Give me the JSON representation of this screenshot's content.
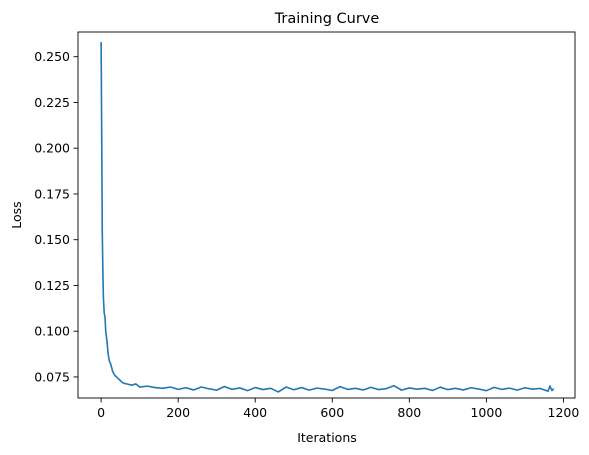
{
  "chart_data": {
    "type": "line",
    "title": "Training Curve",
    "xlabel": "Iterations",
    "ylabel": "Loss",
    "xlim": [
      -60,
      1230
    ],
    "ylim": [
      0.0635,
      0.2635
    ],
    "xticks": [
      0,
      200,
      400,
      600,
      800,
      1000,
      1200
    ],
    "xtick_labels": [
      "0",
      "200",
      "400",
      "600",
      "800",
      "1000",
      "1200"
    ],
    "yticks": [
      0.075,
      0.1,
      0.125,
      0.15,
      0.175,
      0.2,
      0.225,
      0.25
    ],
    "ytick_labels": [
      "0.075",
      "0.100",
      "0.125",
      "0.150",
      "0.175",
      "0.200",
      "0.225",
      "0.250"
    ],
    "grid": false,
    "legend": "none",
    "series": [
      {
        "color": "#1f77b4",
        "x": [
          0,
          1,
          2,
          3,
          4,
          5,
          6,
          8,
          10,
          12,
          15,
          18,
          21,
          25,
          30,
          35,
          40,
          45,
          50,
          55,
          60,
          70,
          80,
          90,
          100,
          120,
          140,
          160,
          180,
          200,
          220,
          240,
          260,
          280,
          300,
          320,
          340,
          360,
          380,
          400,
          420,
          440,
          460,
          480,
          500,
          520,
          540,
          560,
          580,
          600,
          620,
          640,
          660,
          680,
          700,
          720,
          740,
          760,
          780,
          800,
          820,
          840,
          860,
          880,
          900,
          920,
          940,
          960,
          980,
          1000,
          1020,
          1040,
          1060,
          1080,
          1100,
          1120,
          1140,
          1160,
          1165,
          1170,
          1175
        ],
        "y": [
          0.258,
          0.225,
          0.19,
          0.155,
          0.14,
          0.128,
          0.118,
          0.11,
          0.108,
          0.1,
          0.095,
          0.088,
          0.084,
          0.082,
          0.078,
          0.076,
          0.075,
          0.074,
          0.073,
          0.072,
          0.0715,
          0.071,
          0.0705,
          0.0712,
          0.0695,
          0.07,
          0.0692,
          0.0688,
          0.0695,
          0.0682,
          0.0691,
          0.0679,
          0.0695,
          0.0685,
          0.0678,
          0.0698,
          0.0682,
          0.069,
          0.0675,
          0.0692,
          0.0681,
          0.0688,
          0.0668,
          0.0695,
          0.068,
          0.0692,
          0.0678,
          0.0689,
          0.0684,
          0.0676,
          0.0697,
          0.0682,
          0.0688,
          0.0679,
          0.0693,
          0.0681,
          0.0686,
          0.0702,
          0.0678,
          0.069,
          0.0683,
          0.0688,
          0.0676,
          0.0694,
          0.0681,
          0.0688,
          0.0679,
          0.0691,
          0.0684,
          0.0675,
          0.0693,
          0.0682,
          0.0689,
          0.0678,
          0.0691,
          0.0683,
          0.0687,
          0.0672,
          0.0701,
          0.0676,
          0.0686
        ]
      }
    ]
  }
}
